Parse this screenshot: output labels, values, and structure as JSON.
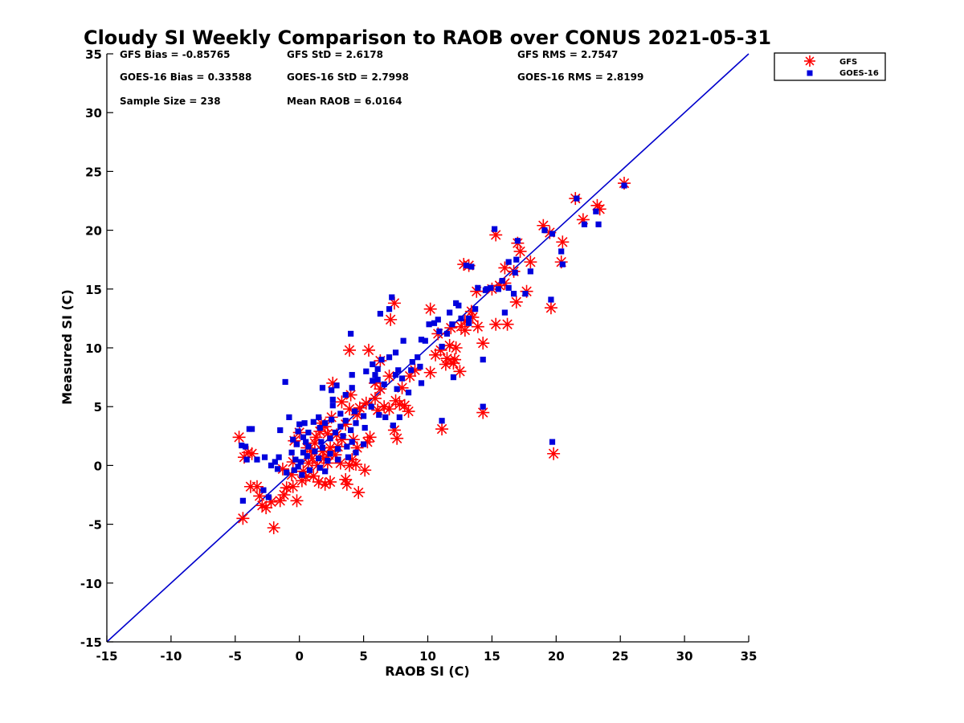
{
  "chart_data": {
    "type": "scatter",
    "title": "Cloudy SI Weekly Comparison to RAOB over CONUS 2021-05-31",
    "xlabel": "RAOB SI (C)",
    "ylabel": "Measured SI (C)",
    "xlim": [
      -15,
      35
    ],
    "ylim": [
      -15,
      35
    ],
    "xticks": [
      "-15",
      "-10",
      "-5",
      "0",
      "5",
      "10",
      "15",
      "20",
      "25",
      "30",
      "35"
    ],
    "yticks": [
      "-15",
      "-10",
      "-5",
      "0",
      "5",
      "10",
      "15",
      "20",
      "25",
      "30",
      "35"
    ],
    "grid": false,
    "legend_position": "outside-top-right",
    "reference_line": {
      "from": [
        -15,
        -15
      ],
      "to": [
        35,
        35
      ],
      "color": "#0000cc"
    },
    "stats": [
      [
        "GFS Bias = -0.85765",
        "GFS StD = 2.6178",
        "GFS RMS = 2.7547"
      ],
      [
        "GOES-16 Bias = 0.33588",
        "GOES-16 StD = 2.7998",
        "GOES-16 RMS = 2.8199"
      ],
      [
        "Sample Size = 238",
        "Mean RAOB = 6.0164",
        ""
      ]
    ],
    "series": [
      {
        "name": "GFS",
        "marker": "asterisk",
        "color": "#ff0000",
        "points": [
          [
            25.3,
            24.0
          ],
          [
            21.5,
            22.7
          ],
          [
            23.2,
            22.1
          ],
          [
            23.4,
            21.8
          ],
          [
            22.1,
            20.9
          ],
          [
            19.0,
            20.4
          ],
          [
            19.5,
            19.8
          ],
          [
            20.5,
            19.0
          ],
          [
            15.3,
            19.6
          ],
          [
            17.0,
            18.9
          ],
          [
            17.2,
            18.2
          ],
          [
            20.4,
            17.3
          ],
          [
            18.0,
            17.3
          ],
          [
            12.8,
            17.1
          ],
          [
            13.2,
            17.0
          ],
          [
            16.0,
            16.8
          ],
          [
            16.7,
            16.5
          ],
          [
            16.0,
            15.5
          ],
          [
            15.6,
            15.3
          ],
          [
            17.7,
            14.8
          ],
          [
            13.8,
            14.8
          ],
          [
            15.0,
            15.0
          ],
          [
            16.9,
            13.9
          ],
          [
            19.6,
            13.4
          ],
          [
            13.4,
            13.1
          ],
          [
            12.9,
            12.3
          ],
          [
            13.5,
            12.6
          ],
          [
            15.3,
            12.0
          ],
          [
            16.2,
            12.0
          ],
          [
            13.9,
            11.8
          ],
          [
            12.9,
            11.5
          ],
          [
            12.6,
            11.8
          ],
          [
            11.8,
            11.7
          ],
          [
            10.8,
            11.2
          ],
          [
            10.2,
            13.3
          ],
          [
            14.3,
            10.4
          ],
          [
            11.7,
            10.2
          ],
          [
            12.2,
            10.0
          ],
          [
            11.0,
            9.8
          ],
          [
            10.6,
            9.4
          ],
          [
            11.5,
            9.1
          ],
          [
            12.1,
            9.0
          ],
          [
            11.4,
            8.6
          ],
          [
            12.0,
            8.7
          ],
          [
            12.5,
            8.0
          ],
          [
            10.2,
            7.9
          ],
          [
            9.0,
            8.1
          ],
          [
            8.6,
            7.6
          ],
          [
            7.4,
            13.8
          ],
          [
            7.1,
            12.4
          ],
          [
            5.4,
            9.8
          ],
          [
            3.9,
            9.8
          ],
          [
            6.3,
            8.9
          ],
          [
            5.9,
            7.0
          ],
          [
            7.0,
            7.6
          ],
          [
            6.3,
            6.5
          ],
          [
            8.0,
            6.6
          ],
          [
            7.8,
            5.2
          ],
          [
            8.2,
            5.1
          ],
          [
            8.5,
            4.6
          ],
          [
            7.5,
            5.5
          ],
          [
            6.6,
            5.0
          ],
          [
            7.0,
            4.8
          ],
          [
            6.1,
            4.7
          ],
          [
            5.9,
            5.7
          ],
          [
            5.2,
            5.3
          ],
          [
            4.7,
            4.9
          ],
          [
            4.5,
            4.3
          ],
          [
            2.6,
            7.0
          ],
          [
            4.0,
            6.0
          ],
          [
            3.3,
            5.4
          ],
          [
            3.9,
            4.8
          ],
          [
            1.7,
            3.6
          ],
          [
            2.5,
            4.1
          ],
          [
            3.6,
            3.5
          ],
          [
            2.0,
            3.3
          ],
          [
            1.6,
            2.9
          ],
          [
            2.2,
            2.7
          ],
          [
            2.9,
            2.6
          ],
          [
            1.3,
            2.4
          ],
          [
            3.3,
            2.2
          ],
          [
            4.2,
            2.2
          ],
          [
            5.5,
            2.4
          ],
          [
            5.3,
            2.0
          ],
          [
            7.6,
            2.3
          ],
          [
            7.4,
            3.0
          ],
          [
            3.0,
            1.6
          ],
          [
            2.4,
            1.5
          ],
          [
            0.6,
            1.5
          ],
          [
            1.2,
            1.9
          ],
          [
            4.5,
            1.5
          ],
          [
            1.8,
            1.2
          ],
          [
            0.9,
            1.2
          ],
          [
            0.0,
            2.8
          ],
          [
            -0.4,
            2.1
          ],
          [
            -0.5,
            0.3
          ],
          [
            -0.6,
            -0.8
          ],
          [
            1.0,
            0.6
          ],
          [
            1.9,
            0.6
          ],
          [
            2.8,
            0.9
          ],
          [
            4.1,
            0.5
          ],
          [
            0.3,
            -0.5
          ],
          [
            0.7,
            0.2
          ],
          [
            1.4,
            0.0
          ],
          [
            2.2,
            0.2
          ],
          [
            3.2,
            0.2
          ],
          [
            3.9,
            0.0
          ],
          [
            4.4,
            0.1
          ],
          [
            0.2,
            -1.3
          ],
          [
            0.5,
            -1.0
          ],
          [
            1.1,
            -0.9
          ],
          [
            1.5,
            -1.4
          ],
          [
            2.0,
            -1.6
          ],
          [
            2.4,
            -1.4
          ],
          [
            3.6,
            -1.2
          ],
          [
            3.7,
            -1.6
          ],
          [
            5.1,
            -0.4
          ],
          [
            4.6,
            -2.3
          ],
          [
            -1.3,
            -0.3
          ],
          [
            -0.5,
            -1.8
          ],
          [
            -1.0,
            -1.9
          ],
          [
            -1.2,
            -2.5
          ],
          [
            -1.5,
            -3.0
          ],
          [
            -2.2,
            -3.1
          ],
          [
            -2.6,
            -3.6
          ],
          [
            -2.9,
            -3.4
          ],
          [
            -3.1,
            -2.6
          ],
          [
            -3.3,
            -1.8
          ],
          [
            -3.8,
            -1.8
          ],
          [
            -0.2,
            -3.0
          ],
          [
            -4.3,
            0.7
          ],
          [
            -4.0,
            1.1
          ],
          [
            -3.7,
            1.0
          ],
          [
            -4.7,
            2.4
          ],
          [
            -2.0,
            -5.3
          ],
          [
            -4.4,
            -4.5
          ],
          [
            14.3,
            4.5
          ],
          [
            11.1,
            3.1
          ],
          [
            19.8,
            1.0
          ],
          [
            2.3,
            0.9
          ]
        ]
      },
      {
        "name": "GOES-16",
        "marker": "square",
        "color": "#0000dd",
        "points": [
          [
            25.3,
            23.8
          ],
          [
            21.6,
            22.7
          ],
          [
            23.1,
            21.6
          ],
          [
            23.3,
            20.5
          ],
          [
            22.2,
            20.5
          ],
          [
            19.1,
            20.0
          ],
          [
            19.7,
            19.7
          ],
          [
            20.4,
            18.2
          ],
          [
            15.2,
            20.1
          ],
          [
            17.0,
            19.1
          ],
          [
            20.5,
            17.1
          ],
          [
            18.0,
            16.5
          ],
          [
            16.8,
            16.4
          ],
          [
            13.0,
            17.0
          ],
          [
            13.4,
            16.9
          ],
          [
            16.3,
            17.3
          ],
          [
            16.9,
            17.5
          ],
          [
            15.8,
            15.7
          ],
          [
            16.3,
            15.1
          ],
          [
            15.5,
            15.0
          ],
          [
            13.9,
            15.1
          ],
          [
            14.5,
            14.9
          ],
          [
            14.6,
            15.0
          ],
          [
            14.9,
            15.1
          ],
          [
            16.0,
            13.0
          ],
          [
            16.7,
            14.6
          ],
          [
            17.6,
            14.6
          ],
          [
            19.6,
            14.1
          ],
          [
            13.7,
            13.3
          ],
          [
            12.2,
            13.8
          ],
          [
            12.4,
            13.6
          ],
          [
            11.7,
            13.0
          ],
          [
            13.2,
            12.5
          ],
          [
            13.2,
            12.1
          ],
          [
            12.6,
            12.5
          ],
          [
            11.9,
            12.0
          ],
          [
            10.8,
            12.4
          ],
          [
            10.5,
            12.1
          ],
          [
            10.9,
            11.4
          ],
          [
            11.5,
            11.2
          ],
          [
            14.3,
            9.0
          ],
          [
            12.0,
            7.5
          ],
          [
            11.1,
            10.1
          ],
          [
            9.8,
            10.6
          ],
          [
            9.5,
            10.7
          ],
          [
            8.1,
            10.6
          ],
          [
            9.4,
            8.4
          ],
          [
            8.8,
            8.8
          ],
          [
            9.2,
            9.2
          ],
          [
            8.7,
            8.1
          ],
          [
            8.0,
            7.4
          ],
          [
            9.5,
            7.0
          ],
          [
            8.5,
            6.2
          ],
          [
            7.2,
            14.3
          ],
          [
            7.0,
            13.3
          ],
          [
            6.3,
            12.9
          ],
          [
            7.5,
            9.6
          ],
          [
            7.0,
            9.2
          ],
          [
            6.4,
            9.0
          ],
          [
            5.7,
            7.2
          ],
          [
            6.1,
            7.3
          ],
          [
            7.7,
            8.1
          ],
          [
            7.5,
            7.7
          ],
          [
            6.6,
            6.9
          ],
          [
            4.0,
            11.2
          ],
          [
            4.1,
            7.7
          ],
          [
            5.2,
            8.0
          ],
          [
            5.7,
            8.6
          ],
          [
            6.1,
            8.2
          ],
          [
            7.6,
            6.5
          ],
          [
            7.8,
            4.1
          ],
          [
            6.7,
            4.1
          ],
          [
            6.2,
            4.3
          ],
          [
            7.3,
            3.4
          ],
          [
            5.6,
            5.0
          ],
          [
            5.0,
            4.2
          ],
          [
            4.3,
            4.6
          ],
          [
            4.1,
            6.6
          ],
          [
            3.6,
            6.0
          ],
          [
            2.9,
            6.8
          ],
          [
            1.8,
            6.6
          ],
          [
            -1.1,
            7.1
          ],
          [
            2.5,
            6.4
          ],
          [
            2.6,
            5.6
          ],
          [
            2.6,
            5.1
          ],
          [
            3.2,
            4.4
          ],
          [
            1.5,
            4.1
          ],
          [
            1.1,
            3.7
          ],
          [
            0.4,
            3.6
          ],
          [
            0.0,
            3.5
          ],
          [
            -0.1,
            2.9
          ],
          [
            0.3,
            2.4
          ],
          [
            0.7,
            2.8
          ],
          [
            1.6,
            3.2
          ],
          [
            2.0,
            3.6
          ],
          [
            2.5,
            3.9
          ],
          [
            2.8,
            2.8
          ],
          [
            3.2,
            3.3
          ],
          [
            3.6,
            3.8
          ],
          [
            4.0,
            3.0
          ],
          [
            4.4,
            3.6
          ],
          [
            5.1,
            3.2
          ],
          [
            1.7,
            2.0
          ],
          [
            2.4,
            2.3
          ],
          [
            3.4,
            2.5
          ],
          [
            4.1,
            2.0
          ],
          [
            -0.5,
            2.2
          ],
          [
            -0.2,
            1.8
          ],
          [
            0.3,
            1.1
          ],
          [
            0.7,
            1.6
          ],
          [
            1.2,
            1.2
          ],
          [
            1.8,
            1.5
          ],
          [
            2.4,
            1.0
          ],
          [
            3.0,
            1.4
          ],
          [
            3.7,
            1.6
          ],
          [
            4.4,
            1.1
          ],
          [
            -0.6,
            1.1
          ],
          [
            -0.3,
            0.5
          ],
          [
            0.1,
            0.3
          ],
          [
            0.6,
            0.8
          ],
          [
            1.5,
            0.6
          ],
          [
            2.2,
            0.4
          ],
          [
            3.0,
            0.5
          ],
          [
            3.8,
            0.7
          ],
          [
            5.0,
            1.8
          ],
          [
            -0.4,
            -0.4
          ],
          [
            0.2,
            -0.8
          ],
          [
            0.8,
            -0.4
          ],
          [
            1.6,
            -0.2
          ],
          [
            2.0,
            -0.5
          ],
          [
            -0.1,
            -0.1
          ],
          [
            -1.5,
            3.0
          ],
          [
            -1.9,
            0.3
          ],
          [
            -1.6,
            0.7
          ],
          [
            -1.7,
            -0.3
          ],
          [
            -2.2,
            0.0
          ],
          [
            -2.7,
            0.7
          ],
          [
            -3.3,
            0.5
          ],
          [
            -3.9,
            3.1
          ],
          [
            -3.7,
            3.1
          ],
          [
            -4.2,
            1.6
          ],
          [
            -4.5,
            1.7
          ],
          [
            -4.1,
            0.5
          ],
          [
            -2.8,
            -2.1
          ],
          [
            -2.4,
            -2.7
          ],
          [
            -1.0,
            -0.6
          ],
          [
            -4.4,
            -3.0
          ],
          [
            -0.8,
            4.1
          ],
          [
            0.5,
            2.0
          ],
          [
            11.1,
            3.8
          ],
          [
            14.3,
            5.0
          ],
          [
            19.7,
            2.0
          ],
          [
            10.1,
            12.0
          ],
          [
            5.9,
            7.7
          ]
        ]
      }
    ]
  }
}
